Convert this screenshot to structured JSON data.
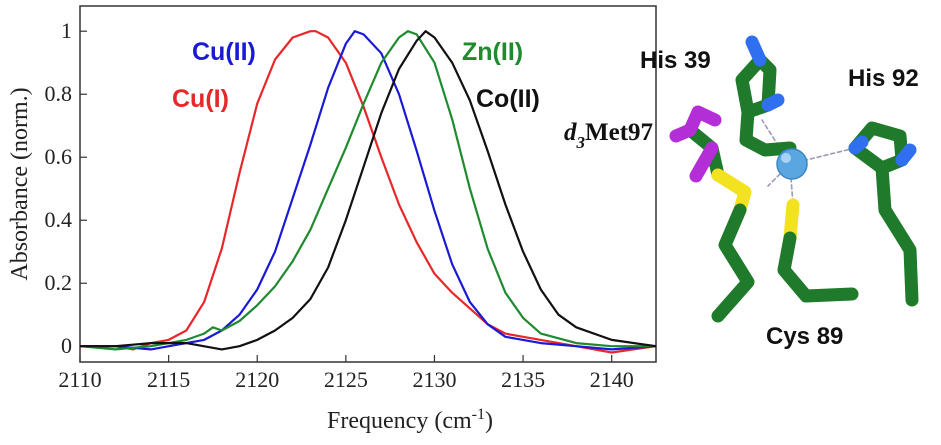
{
  "chart_data": {
    "type": "line",
    "xlabel": "Frequency (cm",
    "xlabel_sup": "-1",
    "xlabel_end": ")",
    "ylabel": "Absorbance (norm.)",
    "xlim": [
      2110,
      2142.5
    ],
    "ylim": [
      -0.05,
      1.08
    ],
    "xticks": [
      2110,
      2115,
      2120,
      2125,
      2130,
      2135,
      2140
    ],
    "yticks": [
      0,
      0.2,
      0.4,
      0.6,
      0.8,
      1
    ],
    "ytick_labels": [
      "0",
      "0.2",
      "0.4",
      "0.6",
      "0.8",
      "1"
    ],
    "grid": false,
    "series": [
      {
        "name": "Cu(I)",
        "color": "#e8272a",
        "x": [
          2110,
          2112,
          2113,
          2114,
          2115,
          2116,
          2117,
          2118,
          2119,
          2120,
          2121,
          2122,
          2123,
          2123.3,
          2124,
          2125,
          2126,
          2127,
          2128,
          2129,
          2130,
          2131,
          2132,
          2133,
          2134,
          2135,
          2136,
          2138,
          2140,
          2142.5
        ],
        "y": [
          0,
          0,
          -0.01,
          0.01,
          0.02,
          0.05,
          0.14,
          0.31,
          0.55,
          0.77,
          0.91,
          0.98,
          1.0,
          1.0,
          0.98,
          0.9,
          0.76,
          0.6,
          0.45,
          0.33,
          0.23,
          0.17,
          0.12,
          0.07,
          0.04,
          0.03,
          0.02,
          0,
          -0.02,
          0
        ]
      },
      {
        "name": "Cu(II)",
        "color": "#1a1ad6",
        "x": [
          2110,
          2112,
          2114,
          2116,
          2117,
          2118,
          2119,
          2120,
          2121,
          2122,
          2123,
          2124,
          2125,
          2125.5,
          2126,
          2127,
          2128,
          2129,
          2130,
          2131,
          2132,
          2133,
          2134,
          2135,
          2136,
          2138,
          2140,
          2142.5
        ],
        "y": [
          0,
          0,
          -0.01,
          0.01,
          0.02,
          0.05,
          0.1,
          0.18,
          0.3,
          0.47,
          0.64,
          0.82,
          0.96,
          1.0,
          0.99,
          0.93,
          0.8,
          0.62,
          0.43,
          0.26,
          0.14,
          0.07,
          0.03,
          0.02,
          0.01,
          0,
          -0.01,
          0
        ]
      },
      {
        "name": "Zn(II)",
        "color": "#1f8a2e",
        "x": [
          2110,
          2112,
          2114,
          2116,
          2117,
          2117.5,
          2118,
          2119,
          2120,
          2121,
          2122,
          2123,
          2124,
          2125,
          2126,
          2127,
          2128,
          2128.5,
          2129,
          2130,
          2131,
          2132,
          2133,
          2134,
          2135,
          2136,
          2138,
          2140,
          2142.5
        ],
        "y": [
          0,
          -0.01,
          0,
          0.02,
          0.04,
          0.06,
          0.05,
          0.08,
          0.13,
          0.19,
          0.27,
          0.37,
          0.5,
          0.63,
          0.77,
          0.9,
          0.98,
          1.0,
          0.99,
          0.9,
          0.72,
          0.5,
          0.31,
          0.17,
          0.09,
          0.04,
          0.01,
          0,
          0
        ]
      },
      {
        "name": "Co(II)",
        "color": "#111111",
        "x": [
          2110,
          2112,
          2114,
          2116,
          2118,
          2119,
          2120,
          2121,
          2122,
          2123,
          2124,
          2125,
          2126,
          2127,
          2128,
          2129,
          2129.5,
          2130,
          2131,
          2132,
          2133,
          2134,
          2135,
          2136,
          2137,
          2138,
          2140,
          2142.5
        ],
        "y": [
          0,
          0,
          0.01,
          0.01,
          -0.01,
          0,
          0.02,
          0.05,
          0.09,
          0.15,
          0.25,
          0.4,
          0.57,
          0.74,
          0.88,
          0.97,
          1.0,
          0.98,
          0.9,
          0.78,
          0.62,
          0.45,
          0.3,
          0.18,
          0.1,
          0.06,
          0.02,
          0
        ]
      }
    ]
  },
  "structure": {
    "labels": {
      "his39": "His 39",
      "his92": "His 92",
      "cys89": "Cys 89",
      "met_prefix": "d",
      "met_sub": "3",
      "met_name": "Met97"
    },
    "colors": {
      "carbon": "#1f7a2b",
      "nitrogen": "#2f6ff0",
      "sulfur": "#f2e21f",
      "deuterium": "#b42ed8",
      "metal": "#5aa6e0",
      "bond_dash": "#9a9ab8"
    }
  }
}
